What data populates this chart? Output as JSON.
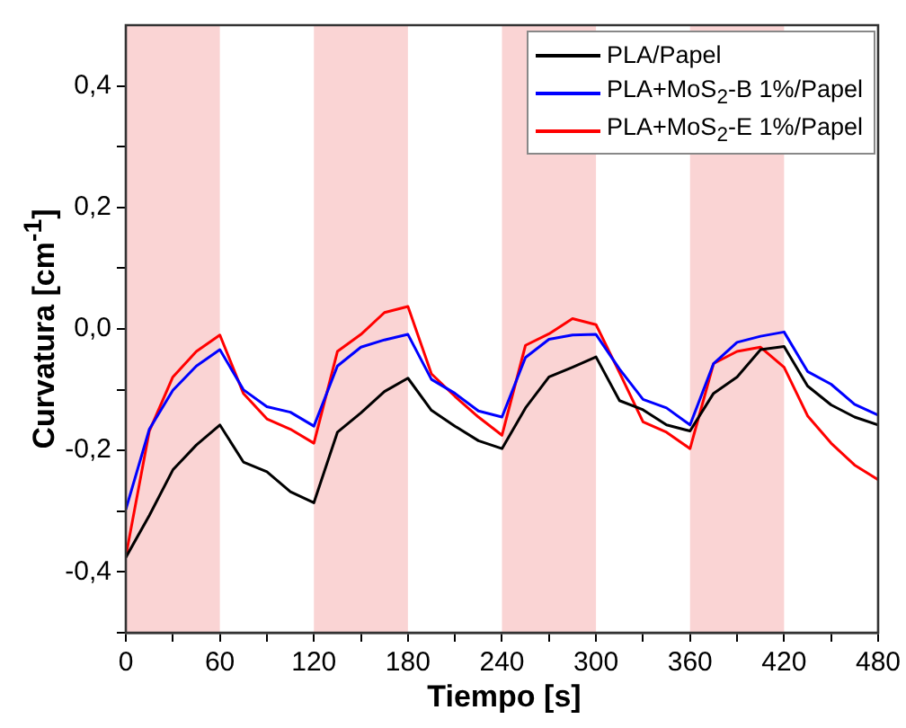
{
  "chart_data": {
    "type": "line",
    "xlabel": "Tiempo [s]",
    "ylabel": "Curvatura [cm$^{-1}$]",
    "x": [
      0,
      15,
      30,
      45,
      60,
      75,
      90,
      105,
      120,
      135,
      150,
      165,
      180,
      195,
      210,
      225,
      240,
      255,
      270,
      285,
      300,
      315,
      330,
      345,
      360,
      375,
      390,
      405,
      420,
      435,
      450,
      465,
      480
    ],
    "series": [
      {
        "name": "PLA/Papel",
        "color": "#000000",
        "values": [
          -0.376,
          -0.307,
          -0.232,
          -0.191,
          -0.158,
          -0.219,
          -0.235,
          -0.268,
          -0.286,
          -0.17,
          -0.138,
          -0.103,
          -0.081,
          -0.134,
          -0.16,
          -0.184,
          -0.197,
          -0.13,
          -0.079,
          -0.063,
          -0.046,
          -0.118,
          -0.133,
          -0.158,
          -0.168,
          -0.106,
          -0.079,
          -0.034,
          -0.029,
          -0.094,
          -0.125,
          -0.145,
          -0.158
        ]
      },
      {
        "name": "PLA+MoS$_{2}$-B 1%/Papel",
        "color": "#0000ff",
        "values": [
          -0.297,
          -0.165,
          -0.101,
          -0.061,
          -0.034,
          -0.1,
          -0.128,
          -0.137,
          -0.16,
          -0.061,
          -0.03,
          -0.018,
          -0.009,
          -0.083,
          -0.106,
          -0.135,
          -0.145,
          -0.047,
          -0.017,
          -0.01,
          -0.009,
          -0.066,
          -0.116,
          -0.13,
          -0.158,
          -0.057,
          -0.022,
          -0.012,
          -0.005,
          -0.07,
          -0.091,
          -0.124,
          -0.142
        ]
      },
      {
        "name": "PLA+MoS$_{2}$-E 1%/Papel",
        "color": "#ff0000",
        "values": [
          -0.374,
          -0.168,
          -0.079,
          -0.037,
          -0.01,
          -0.106,
          -0.148,
          -0.165,
          -0.188,
          -0.037,
          -0.009,
          0.027,
          0.037,
          -0.074,
          -0.111,
          -0.145,
          -0.175,
          -0.027,
          -0.008,
          0.017,
          0.007,
          -0.072,
          -0.153,
          -0.17,
          -0.197,
          -0.057,
          -0.037,
          -0.03,
          -0.063,
          -0.143,
          -0.188,
          -0.224,
          -0.248
        ]
      }
    ],
    "xlim": [
      0,
      480
    ],
    "xticks": [
      0,
      {
        "value": 30,
        "label": null
      },
      60,
      {
        "value": 90,
        "label": null
      },
      120,
      {
        "value": 150,
        "label": null
      },
      180,
      {
        "value": 210,
        "label": null
      },
      240,
      {
        "value": 270,
        "label": null
      },
      300,
      {
        "value": 330,
        "label": null
      },
      360,
      {
        "value": 390,
        "label": null
      },
      420,
      {
        "value": 450,
        "label": null
      },
      480
    ],
    "ylim": [
      -0.5,
      0.5
    ],
    "yticks": [
      {
        "value": -0.5,
        "label": null
      },
      {
        "value": -0.4,
        "label": "-0,4"
      },
      {
        "value": -0.3,
        "label": null
      },
      {
        "value": -0.2,
        "label": "-0,2"
      },
      {
        "value": -0.1,
        "label": null
      },
      {
        "value": 0,
        "label": "0,0"
      },
      {
        "value": 0.1,
        "label": null
      },
      {
        "value": 0.2,
        "label": "0,2"
      },
      {
        "value": 0.3,
        "label": null
      },
      {
        "value": 0.4,
        "label": "0,4"
      }
    ],
    "bands": [
      {
        "axis": "x",
        "from": 0,
        "to": 60,
        "color": "#fad4d4"
      },
      {
        "axis": "x",
        "from": 120,
        "to": 180,
        "color": "#fad4d4"
      },
      {
        "axis": "x",
        "from": 240,
        "to": 300,
        "color": "#fad4d4"
      },
      {
        "axis": "x",
        "from": 360,
        "to": 420,
        "color": "#fad4d4"
      }
    ],
    "grid": false,
    "legend": "top right",
    "marker": "none",
    "line_style": "solid"
  }
}
